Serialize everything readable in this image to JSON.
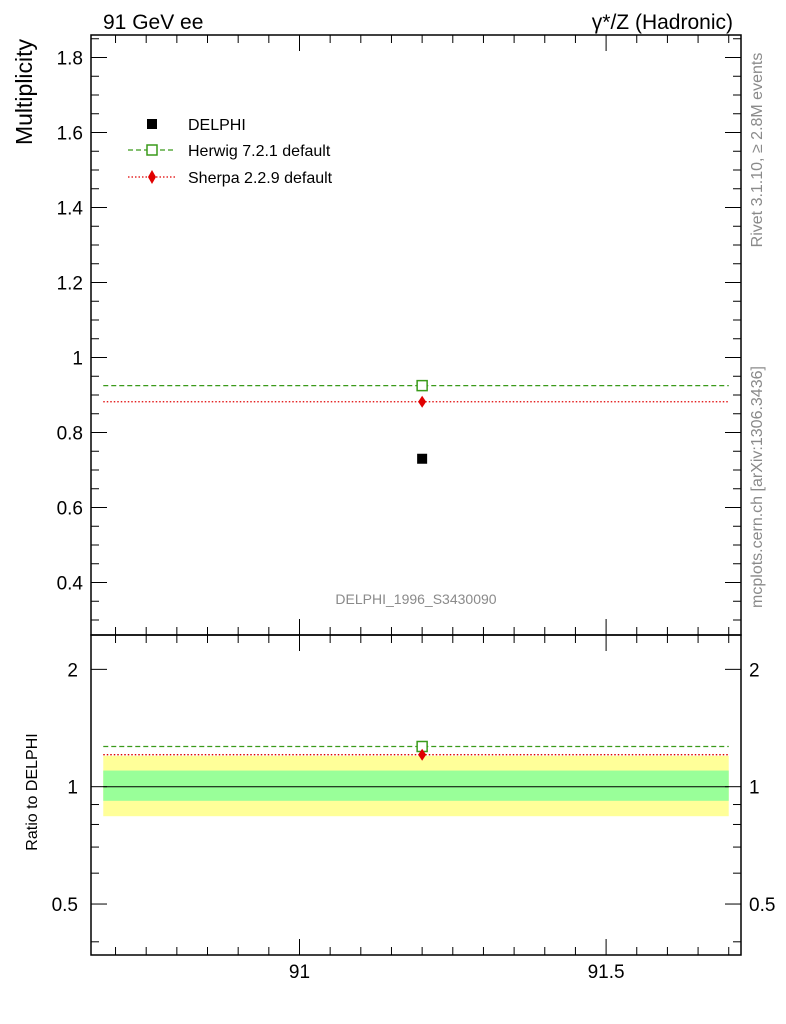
{
  "header": {
    "left": "91 GeV ee",
    "right": "γ*/Z (Hadronic)"
  },
  "side_text": {
    "rivet": "Rivet 3.1.10, ≥ 2.8M events",
    "mcplots": "mcplots.cern.ch [arXiv:1306.3436]"
  },
  "analysis_label": "DELPHI_1996_S3430090",
  "colors": {
    "data": "#000000",
    "herwig": "#3a9a1a",
    "sherpa": "#e00000",
    "band_inner": "#99ff99",
    "band_outer": "#ffff99"
  },
  "chart_data": [
    {
      "type": "scatter",
      "ylabel": "Multiplicity",
      "xlim": [
        90.66,
        91.72
      ],
      "ylim": [
        0.26,
        1.86
      ],
      "yticks": [
        0.4,
        0.6,
        0.8,
        1,
        1.2,
        1.4,
        1.6,
        1.8
      ],
      "ytick_labels": [
        "0.4",
        "0.6",
        "0.8",
        "1",
        "1.2",
        "1.4",
        "1.6",
        "1.8"
      ],
      "legend_position": "top-left",
      "series": [
        {
          "name": "DELPHI",
          "style": "square-filled",
          "x": [
            91.2
          ],
          "y": [
            0.73
          ]
        },
        {
          "name": "Herwig 7.2.1 default",
          "style": "square-open-dashed",
          "x": [
            91.2
          ],
          "y": [
            0.925
          ],
          "xrange": [
            90.68,
            91.7
          ]
        },
        {
          "name": "Sherpa 2.2.9 default",
          "style": "diamond-dotted",
          "x": [
            91.2
          ],
          "y": [
            0.882
          ],
          "xrange": [
            90.68,
            91.7
          ]
        }
      ]
    },
    {
      "type": "scatter",
      "ylabel": "Ratio to DELPHI",
      "xlim": [
        90.66,
        91.72
      ],
      "ylim": [
        0.37,
        2.45
      ],
      "log_y": true,
      "yticks": [
        0.5,
        1,
        2
      ],
      "ytick_labels": [
        "0.5",
        "1",
        "2"
      ],
      "xticks": [
        91,
        91.5
      ],
      "xtick_labels": [
        "91",
        "91.5"
      ],
      "bands": {
        "inner": [
          0.92,
          1.1
        ],
        "outer": [
          0.84,
          1.2
        ]
      },
      "series": [
        {
          "name": "Herwig 7.2.1 default",
          "x": [
            91.2
          ],
          "y": [
            1.268
          ]
        },
        {
          "name": "Sherpa 2.2.9 default",
          "x": [
            91.2
          ],
          "y": [
            1.208
          ]
        }
      ]
    }
  ]
}
